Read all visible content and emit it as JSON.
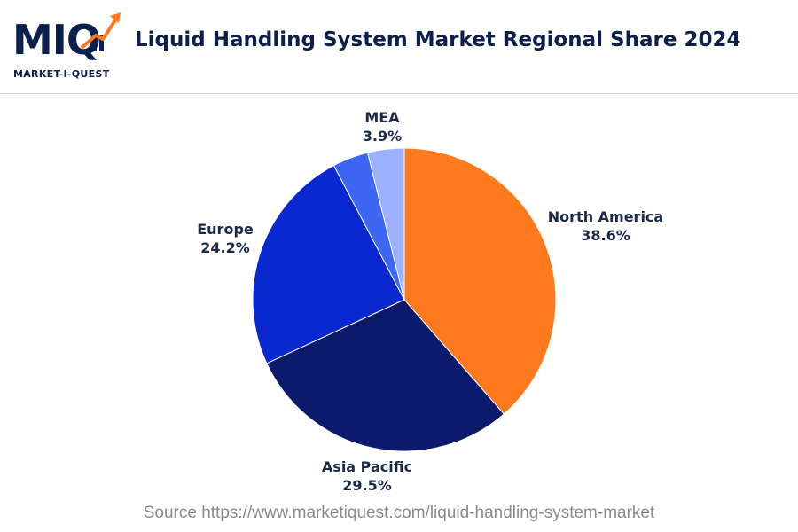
{
  "logo": {
    "word": "MIQ",
    "tagline": "MARKET-I-QUEST"
  },
  "colors": {
    "north_america": "#ff7a1c",
    "asia_pacific": "#0c1a6b",
    "europe": "#0a28d0",
    "latin_america": "#3d66f2",
    "mea": "#9db2ff"
  },
  "chart_data": {
    "type": "pie",
    "title": "Liquid Handling System Market Regional Share 2024",
    "slices": [
      {
        "label": "North America",
        "value": 38.6,
        "value_label": "38.6%"
      },
      {
        "label": "Asia Pacific",
        "value": 29.5,
        "value_label": "29.5%"
      },
      {
        "label": "Europe",
        "value": 24.2,
        "value_label": "24.2%"
      },
      {
        "label": "",
        "value": 3.8,
        "value_label": ""
      },
      {
        "label": "MEA",
        "value": 3.9,
        "value_label": "3.9%"
      }
    ],
    "start": "top",
    "direction": "clockwise",
    "legend": "none"
  },
  "source": "Source https://www.marketiquest.com/liquid-handling-system-market"
}
